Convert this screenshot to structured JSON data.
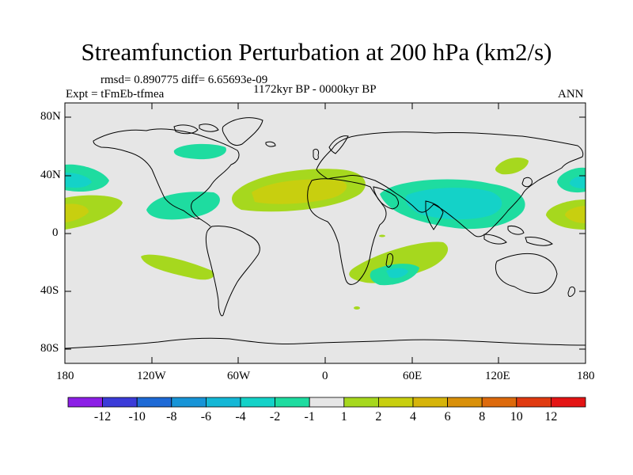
{
  "title": "Streamfunction Perturbation at 200 hPa (km2/s)",
  "stats_text": "rmsd= 0.890775 diff= 6.65693e-09",
  "left_label": "Expt = tFmEb-tfmea",
  "center_label": "1172kyr BP - 0000kyr BP",
  "right_label": "ANN",
  "lat_ticks": [
    "80N",
    "40N",
    "0",
    "40S",
    "80S"
  ],
  "lon_ticks": [
    "180",
    "120W",
    "60W",
    "0",
    "60E",
    "120E",
    "180"
  ],
  "colorbar": {
    "labels": [
      "-12",
      "-10",
      "-8",
      "-6",
      "-4",
      "-2",
      "-1",
      "1",
      "2",
      "4",
      "6",
      "8",
      "10",
      "12"
    ],
    "colors": [
      "#8c1fe6",
      "#3b3bd8",
      "#1e6ad6",
      "#1794d7",
      "#14b7d6",
      "#14d2c8",
      "#1edca0",
      "#e6e6e6",
      "#a6d81e",
      "#c8cf0f",
      "#d6b40a",
      "#d9900a",
      "#dd6a0c",
      "#e03a10",
      "#e41414"
    ]
  },
  "colors": {
    "background": "#e6e6e6",
    "positive_light": "#a6d81e",
    "positive_mid": "#c8cf0f",
    "negative_light": "#1edca0",
    "negative_mid": "#14d2c8"
  }
}
